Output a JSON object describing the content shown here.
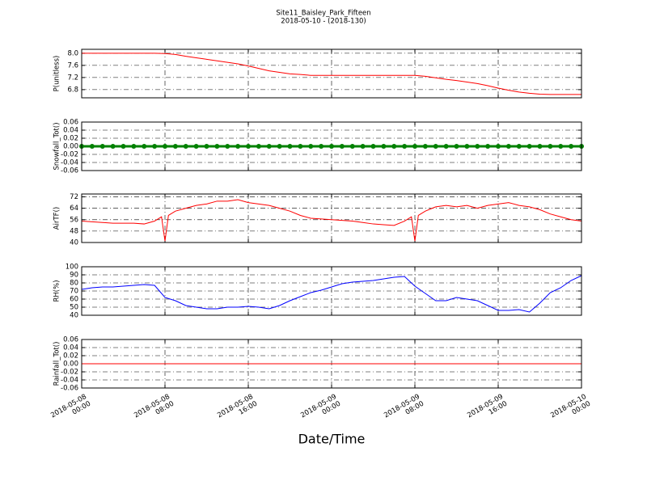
{
  "chart_data": [
    {
      "type": "line",
      "title": "Site11_Baisley_Park_Fifteen",
      "subtitle": "2018-05-10 - (2018-130)",
      "ylabel": "P(unitless)",
      "color": "#ff0000",
      "grid": true,
      "xlim": [
        "2018-05-08 00:00",
        "2018-05-10 00:00"
      ],
      "xticks": [
        "2018-05-08 00:00",
        "2018-05-08 08:00",
        "2018-05-08 16:00",
        "2018-05-09 00:00",
        "2018-05-09 08:00",
        "2018-05-09 16:00",
        "2018-05-10 00:00"
      ],
      "ylim": [
        6.53,
        8.13
      ],
      "yticks": [
        {
          "value": 6.8,
          "label": "6.8"
        },
        {
          "value": 7.2,
          "label": "7.2"
        },
        {
          "value": 7.6,
          "label": "7.6"
        },
        {
          "value": 8,
          "label": "8.0"
        }
      ],
      "x": [
        "2018-05-08 00:00",
        "2018-05-08 01:00",
        "2018-05-08 02:00",
        "2018-05-08 03:00",
        "2018-05-08 04:00",
        "2018-05-08 05:00",
        "2018-05-08 06:00",
        "2018-05-08 07:00",
        "2018-05-08 08:00",
        "2018-05-08 09:00",
        "2018-05-08 10:00",
        "2018-05-08 11:00",
        "2018-05-08 12:00",
        "2018-05-08 13:00",
        "2018-05-08 14:00",
        "2018-05-08 15:00",
        "2018-05-08 16:00",
        "2018-05-08 17:00",
        "2018-05-08 18:00",
        "2018-05-08 19:00",
        "2018-05-08 20:00",
        "2018-05-08 21:00",
        "2018-05-08 22:00",
        "2018-05-08 23:00",
        "2018-05-09 00:00",
        "2018-05-09 01:00",
        "2018-05-09 02:00",
        "2018-05-09 03:00",
        "2018-05-09 04:00",
        "2018-05-09 05:00",
        "2018-05-09 06:00",
        "2018-05-09 07:00",
        "2018-05-09 08:00",
        "2018-05-09 09:00",
        "2018-05-09 10:00",
        "2018-05-09 11:00",
        "2018-05-09 12:00",
        "2018-05-09 13:00",
        "2018-05-09 14:00",
        "2018-05-09 15:00",
        "2018-05-09 16:00",
        "2018-05-09 17:00",
        "2018-05-09 18:00",
        "2018-05-09 19:00",
        "2018-05-09 20:00",
        "2018-05-09 21:00",
        "2018-05-09 22:00",
        "2018-05-09 23:00",
        "2018-05-10 00:00"
      ],
      "values": [
        8,
        8,
        8,
        8,
        8,
        8,
        8,
        8,
        7.99,
        7.96,
        7.9,
        7.85,
        7.8,
        7.75,
        7.7,
        7.65,
        7.58,
        7.5,
        7.42,
        7.37,
        7.32,
        7.3,
        7.27,
        7.27,
        7.27,
        7.27,
        7.27,
        7.27,
        7.27,
        7.27,
        7.27,
        7.27,
        7.27,
        7.24,
        7.19,
        7.14,
        7.1,
        7.05,
        7,
        6.93,
        6.85,
        6.78,
        6.72,
        6.68,
        6.65,
        6.64,
        6.64,
        6.64,
        6.64
      ]
    },
    {
      "type": "line",
      "ylabel": "Snowfall_Tot()",
      "color": "#008000",
      "markers": true,
      "grid": true,
      "xlim": [
        "2018-05-08 00:00",
        "2018-05-10 00:00"
      ],
      "xticks": [
        "2018-05-08 00:00",
        "2018-05-08 08:00",
        "2018-05-08 16:00",
        "2018-05-09 00:00",
        "2018-05-09 08:00",
        "2018-05-09 16:00",
        "2018-05-10 00:00"
      ],
      "ylim": [
        -0.06,
        0.06
      ],
      "yticks": [
        -0.06,
        -0.04,
        -0.02,
        {
          "value": 0,
          "label": "0.00"
        },
        0.02,
        0.04,
        0.06
      ],
      "x": [
        "2018-05-08 00:00",
        "2018-05-08 01:00",
        "2018-05-08 02:00",
        "2018-05-08 03:00",
        "2018-05-08 04:00",
        "2018-05-08 05:00",
        "2018-05-08 06:00",
        "2018-05-08 07:00",
        "2018-05-08 08:00",
        "2018-05-08 09:00",
        "2018-05-08 10:00",
        "2018-05-08 11:00",
        "2018-05-08 12:00",
        "2018-05-08 13:00",
        "2018-05-08 14:00",
        "2018-05-08 15:00",
        "2018-05-08 16:00",
        "2018-05-08 17:00",
        "2018-05-08 18:00",
        "2018-05-08 19:00",
        "2018-05-08 20:00",
        "2018-05-08 21:00",
        "2018-05-08 22:00",
        "2018-05-08 23:00",
        "2018-05-09 00:00",
        "2018-05-09 01:00",
        "2018-05-09 02:00",
        "2018-05-09 03:00",
        "2018-05-09 04:00",
        "2018-05-09 05:00",
        "2018-05-09 06:00",
        "2018-05-09 07:00",
        "2018-05-09 08:00",
        "2018-05-09 09:00",
        "2018-05-09 10:00",
        "2018-05-09 11:00",
        "2018-05-09 12:00",
        "2018-05-09 13:00",
        "2018-05-09 14:00",
        "2018-05-09 15:00",
        "2018-05-09 16:00",
        "2018-05-09 17:00",
        "2018-05-09 18:00",
        "2018-05-09 19:00",
        "2018-05-09 20:00",
        "2018-05-09 21:00",
        "2018-05-09 22:00",
        "2018-05-09 23:00",
        "2018-05-10 00:00"
      ],
      "values": [
        0,
        0,
        0,
        0,
        0,
        0,
        0,
        0,
        0,
        0,
        0,
        0,
        0,
        0,
        0,
        0,
        0,
        0,
        0,
        0,
        0,
        0,
        0,
        0,
        0,
        0,
        0,
        0,
        0,
        0,
        0,
        0,
        0,
        0,
        0,
        0,
        0,
        0,
        0,
        0,
        0,
        0,
        0,
        0,
        0,
        0,
        0,
        0,
        0
      ]
    },
    {
      "type": "line",
      "ylabel": "AirTF()",
      "color": "#ff0000",
      "grid": true,
      "xlim": [
        "2018-05-08 00:00",
        "2018-05-10 00:00"
      ],
      "xticks": [
        "2018-05-08 00:00",
        "2018-05-08 08:00",
        "2018-05-08 16:00",
        "2018-05-09 00:00",
        "2018-05-09 08:00",
        "2018-05-09 16:00",
        "2018-05-10 00:00"
      ],
      "ylim": [
        40,
        74
      ],
      "yticks": [
        40,
        48,
        56,
        64,
        72
      ],
      "x": [
        "2018-05-08 00:00",
        "2018-05-08 01:00",
        "2018-05-08 02:00",
        "2018-05-08 03:00",
        "2018-05-08 04:00",
        "2018-05-08 05:00",
        "2018-05-08 06:00",
        "2018-05-08 07:00",
        "2018-05-08 07:40",
        "2018-05-08 08:00",
        "2018-05-08 08:20",
        "2018-05-08 09:00",
        "2018-05-08 10:00",
        "2018-05-08 11:00",
        "2018-05-08 12:00",
        "2018-05-08 13:00",
        "2018-05-08 14:00",
        "2018-05-08 15:00",
        "2018-05-08 16:00",
        "2018-05-08 17:00",
        "2018-05-08 18:00",
        "2018-05-08 19:00",
        "2018-05-08 20:00",
        "2018-05-08 21:00",
        "2018-05-08 22:00",
        "2018-05-08 23:00",
        "2018-05-09 00:00",
        "2018-05-09 01:00",
        "2018-05-09 02:00",
        "2018-05-09 03:00",
        "2018-05-09 04:00",
        "2018-05-09 05:00",
        "2018-05-09 06:00",
        "2018-05-09 07:00",
        "2018-05-09 07:40",
        "2018-05-09 08:00",
        "2018-05-09 08:20",
        "2018-05-09 09:00",
        "2018-05-09 10:00",
        "2018-05-09 11:00",
        "2018-05-09 12:00",
        "2018-05-09 13:00",
        "2018-05-09 14:00",
        "2018-05-09 15:00",
        "2018-05-09 16:00",
        "2018-05-09 17:00",
        "2018-05-09 18:00",
        "2018-05-09 19:00",
        "2018-05-09 20:00",
        "2018-05-09 21:00",
        "2018-05-09 22:00",
        "2018-05-09 23:00",
        "2018-05-10 00:00"
      ],
      "values": [
        55,
        54.5,
        54,
        53.5,
        53.5,
        53.5,
        53,
        55,
        58,
        41,
        59,
        62,
        64,
        66,
        67,
        69,
        69,
        70,
        68,
        67,
        66,
        64,
        62,
        59,
        57,
        56.5,
        56,
        55.5,
        55,
        54,
        53,
        52.5,
        52,
        55,
        58,
        41,
        59,
        62,
        65,
        66,
        65,
        66,
        64,
        66,
        67,
        68,
        66,
        65,
        63,
        60,
        58,
        56,
        55
      ]
    },
    {
      "type": "line",
      "ylabel": "RH(%)",
      "color": "#0000ff",
      "grid": true,
      "xlim": [
        "2018-05-08 00:00",
        "2018-05-10 00:00"
      ],
      "xticks": [
        "2018-05-08 00:00",
        "2018-05-08 08:00",
        "2018-05-08 16:00",
        "2018-05-09 00:00",
        "2018-05-09 08:00",
        "2018-05-09 16:00",
        "2018-05-10 00:00"
      ],
      "ylim": [
        40,
        100
      ],
      "yticks": [
        40,
        50,
        60,
        70,
        80,
        90,
        100
      ],
      "x": [
        "2018-05-08 00:00",
        "2018-05-08 01:00",
        "2018-05-08 02:00",
        "2018-05-08 03:00",
        "2018-05-08 04:00",
        "2018-05-08 05:00",
        "2018-05-08 06:00",
        "2018-05-08 07:00",
        "2018-05-08 08:00",
        "2018-05-08 09:00",
        "2018-05-08 10:00",
        "2018-05-08 11:00",
        "2018-05-08 12:00",
        "2018-05-08 13:00",
        "2018-05-08 14:00",
        "2018-05-08 15:00",
        "2018-05-08 16:00",
        "2018-05-08 17:00",
        "2018-05-08 18:00",
        "2018-05-08 19:00",
        "2018-05-08 20:00",
        "2018-05-08 21:00",
        "2018-05-08 22:00",
        "2018-05-08 23:00",
        "2018-05-09 00:00",
        "2018-05-09 01:00",
        "2018-05-09 02:00",
        "2018-05-09 03:00",
        "2018-05-09 04:00",
        "2018-05-09 05:00",
        "2018-05-09 06:00",
        "2018-05-09 07:00",
        "2018-05-09 08:00",
        "2018-05-09 09:00",
        "2018-05-09 10:00",
        "2018-05-09 11:00",
        "2018-05-09 12:00",
        "2018-05-09 13:00",
        "2018-05-09 14:00",
        "2018-05-09 15:00",
        "2018-05-09 16:00",
        "2018-05-09 17:00",
        "2018-05-09 18:00",
        "2018-05-09 19:00",
        "2018-05-09 20:00",
        "2018-05-09 21:00",
        "2018-05-09 22:00",
        "2018-05-09 23:00",
        "2018-05-10 00:00"
      ],
      "values": [
        72,
        74,
        75,
        75,
        76,
        77,
        78,
        77,
        62,
        58,
        52,
        50,
        48,
        48,
        50,
        50,
        51,
        50,
        48,
        52,
        58,
        63,
        68,
        71,
        75,
        79,
        81,
        82,
        83,
        85,
        87,
        88,
        76,
        67,
        58,
        58,
        62,
        60,
        58,
        52,
        46,
        46,
        47,
        44,
        55,
        68,
        74,
        83,
        89
      ]
    },
    {
      "type": "line",
      "ylabel": "Rainfall_Tot()",
      "xlabel": "Date/Time",
      "color": "#ff0000",
      "grid": true,
      "xlim": [
        "2018-05-08 00:00",
        "2018-05-10 00:00"
      ],
      "xticks": [
        "2018-05-08 00:00",
        "2018-05-08 08:00",
        "2018-05-08 16:00",
        "2018-05-09 00:00",
        "2018-05-09 08:00",
        "2018-05-09 16:00",
        "2018-05-10 00:00"
      ],
      "ylim": [
        -0.06,
        0.06
      ],
      "yticks": [
        -0.06,
        -0.04,
        -0.02,
        {
          "value": 0,
          "label": "0.00"
        },
        0.02,
        0.04,
        0.06
      ],
      "x": [
        "2018-05-08 00:00",
        "2018-05-08 01:00",
        "2018-05-08 02:00",
        "2018-05-08 03:00",
        "2018-05-08 04:00",
        "2018-05-08 05:00",
        "2018-05-08 06:00",
        "2018-05-08 07:00",
        "2018-05-08 08:00",
        "2018-05-08 09:00",
        "2018-05-08 10:00",
        "2018-05-08 11:00",
        "2018-05-08 12:00",
        "2018-05-08 13:00",
        "2018-05-08 14:00",
        "2018-05-08 15:00",
        "2018-05-08 16:00",
        "2018-05-08 17:00",
        "2018-05-08 18:00",
        "2018-05-08 19:00",
        "2018-05-08 20:00",
        "2018-05-08 21:00",
        "2018-05-08 22:00",
        "2018-05-08 23:00",
        "2018-05-09 00:00",
        "2018-05-09 01:00",
        "2018-05-09 02:00",
        "2018-05-09 03:00",
        "2018-05-09 04:00",
        "2018-05-09 05:00",
        "2018-05-09 06:00",
        "2018-05-09 07:00",
        "2018-05-09 08:00",
        "2018-05-09 09:00",
        "2018-05-09 10:00",
        "2018-05-09 11:00",
        "2018-05-09 12:00",
        "2018-05-09 13:00",
        "2018-05-09 14:00",
        "2018-05-09 15:00",
        "2018-05-09 16:00",
        "2018-05-09 17:00",
        "2018-05-09 18:00",
        "2018-05-09 19:00",
        "2018-05-09 20:00",
        "2018-05-09 21:00",
        "2018-05-09 22:00",
        "2018-05-09 23:00",
        "2018-05-10 00:00"
      ],
      "values": [
        0,
        0,
        0,
        0,
        0,
        0,
        0,
        0,
        0,
        0,
        0,
        0,
        0,
        0,
        0,
        0,
        0,
        0,
        0,
        0,
        0,
        0,
        0,
        0,
        0,
        0,
        0,
        0,
        0,
        0,
        0,
        0,
        0,
        0,
        0,
        0,
        0,
        0,
        0,
        0,
        0,
        0,
        0,
        0,
        0,
        0,
        0,
        0,
        0
      ]
    }
  ]
}
